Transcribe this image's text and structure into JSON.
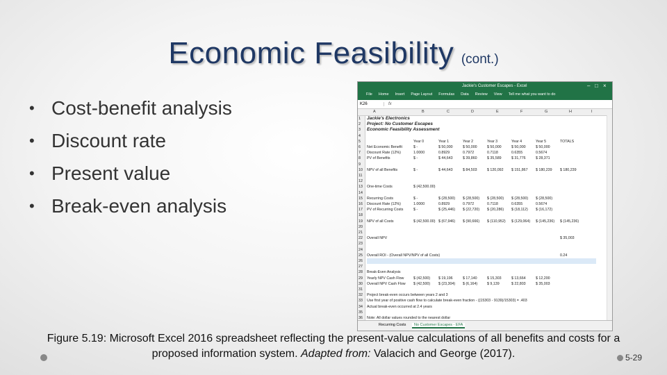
{
  "slide": {
    "title": "Economic Feasibility",
    "title_suffix": "(cont.)",
    "bullets": [
      "Cost-benefit analysis",
      "Discount rate",
      "Present value",
      "Break-even analysis"
    ],
    "bullet_glyph": "•",
    "caption_line1": "Figure 5.19: Microsoft Excel 2016 spreadsheet reflecting the present-value calculations of all benefits and costs for a",
    "caption_line2_before": "proposed information system. ",
    "caption_line2_italic": "Adapted from:",
    "caption_line2_after": " Valacich and George (2017).",
    "page_number": "5-29",
    "colors": {
      "title": "#1f3864",
      "excel_green": "#217346"
    }
  },
  "excel": {
    "window_title": "Jackie's Customer Escapes - Excel",
    "ribbon_tabs": [
      "File",
      "Home",
      "Insert",
      "Page Layout",
      "Formulas",
      "Data",
      "Review",
      "View"
    ],
    "tell_me": "Tell me what you want to do",
    "cell_ref": "K26",
    "fx": "fx",
    "columns": [
      "A",
      "B",
      "C",
      "D",
      "E",
      "F",
      "G",
      "H",
      "I"
    ],
    "rows": [
      {
        "n": "1",
        "a": "Jackie's Electronics",
        "bold": true
      },
      {
        "n": "2",
        "a": "Project: No Customer Escapes",
        "bold": true
      },
      {
        "n": "3",
        "a": "Economic Feasibility Assessment",
        "bold": true
      },
      {
        "n": "4",
        "a": ""
      },
      {
        "n": "5",
        "a": "",
        "cells": [
          "Year 0",
          "Year 1",
          "Year 2",
          "Year 3",
          "Year 4",
          "Year 5",
          "TOTALS"
        ]
      },
      {
        "n": "6",
        "a": "Net Economic Benefit",
        "cells": [
          "$  -",
          "$ 50,000",
          "$ 50,000",
          "$ 50,000",
          "$ 50,000",
          "$ 50,000",
          ""
        ]
      },
      {
        "n": "7",
        "a": "Discount Rate (12%)",
        "cells": [
          "1.0000",
          "0.8929",
          "0.7972",
          "0.7118",
          "0.6355",
          "0.5674",
          ""
        ]
      },
      {
        "n": "8",
        "a": "PV of Benefits",
        "cells": [
          "$  -",
          "$ 44,643",
          "$ 39,860",
          "$ 35,589",
          "$ 31,776",
          "$ 28,371",
          ""
        ]
      },
      {
        "n": "9",
        "a": ""
      },
      {
        "n": "10",
        "a": "NPV of all Benefits",
        "cells": [
          "$  -",
          "$ 44,643",
          "$ 84,503",
          "$ 120,092",
          "$ 151,867",
          "$ 180,239",
          "$ 180,239"
        ]
      },
      {
        "n": "11",
        "a": ""
      },
      {
        "n": "12",
        "a": ""
      },
      {
        "n": "13",
        "a": "One-time Costs",
        "cells": [
          "$ (42,500.00)",
          "",
          "",
          "",
          "",
          "",
          ""
        ]
      },
      {
        "n": "14",
        "a": ""
      },
      {
        "n": "15",
        "a": "Recurring Costs",
        "cells": [
          "$  -",
          "$ (28,500)",
          "$ (28,500)",
          "$ (28,500)",
          "$ (28,500)",
          "$ (28,500)",
          ""
        ]
      },
      {
        "n": "16",
        "a": "Discount Rate (12%)",
        "cells": [
          "1.0000",
          "0.8929",
          "0.7972",
          "0.7118",
          "0.6355",
          "0.5674",
          ""
        ]
      },
      {
        "n": "17",
        "a": "PV of Recurring Costs",
        "cells": [
          "$  -",
          "$ (25,446)",
          "$ (22,720)",
          "$ (20,286)",
          "$ (18,112)",
          "$ (16,172)",
          ""
        ]
      },
      {
        "n": "18",
        "a": ""
      },
      {
        "n": "19",
        "a": "NPV of all Costs",
        "cells": [
          "$ (42,500.00)",
          "$ (67,946)",
          "$ (90,666)",
          "$ (110,952)",
          "$ (129,064)",
          "$ (145,236)",
          "$ (145,236)"
        ]
      },
      {
        "n": "20",
        "a": ""
      },
      {
        "n": "21",
        "a": ""
      },
      {
        "n": "22",
        "a": "Overall NPV",
        "cells": [
          "",
          "",
          "",
          "",
          "",
          "",
          "$ 35,003"
        ]
      },
      {
        "n": "23",
        "a": ""
      },
      {
        "n": "24",
        "a": ""
      },
      {
        "n": "25",
        "a": "Overall ROI - (Overall NPV/NPV of all Costs)",
        "cells": [
          "",
          "",
          "",
          "",
          "",
          "",
          "0.24"
        ]
      },
      {
        "n": "26",
        "a": "",
        "selected": true
      },
      {
        "n": "27",
        "a": ""
      },
      {
        "n": "28",
        "a": "Break-Even Analysis"
      },
      {
        "n": "29",
        "a": "Yearly NPV Cash Flow",
        "cells": [
          "$ (42,500)",
          "$ 19,196",
          "$ 17,140",
          "$ 15,303",
          "$ 13,664",
          "$ 12,200",
          ""
        ]
      },
      {
        "n": "30",
        "a": "Overall NPV Cash Flow",
        "cells": [
          "$ (42,500)",
          "$ (23,304)",
          "$ (6,164)",
          "$ 9,139",
          "$ 22,803",
          "$ 35,003",
          ""
        ]
      },
      {
        "n": "31",
        "a": ""
      },
      {
        "n": "32",
        "a": "Project break-even occurs between years 2 and 3"
      },
      {
        "n": "33",
        "a": "Use first year of positive cash flow to calculate break-even fraction - ((15303 - 9139)/15303) = .403"
      },
      {
        "n": "34",
        "a": "Actual break-even occurred at 2.4 years"
      },
      {
        "n": "35",
        "a": ""
      },
      {
        "n": "36",
        "a": "Note: All dollar values rounded to the nearest dollar"
      }
    ],
    "sheet_tabs": [
      "Recurring Costs",
      "No Customer Escapes - EFA"
    ]
  }
}
